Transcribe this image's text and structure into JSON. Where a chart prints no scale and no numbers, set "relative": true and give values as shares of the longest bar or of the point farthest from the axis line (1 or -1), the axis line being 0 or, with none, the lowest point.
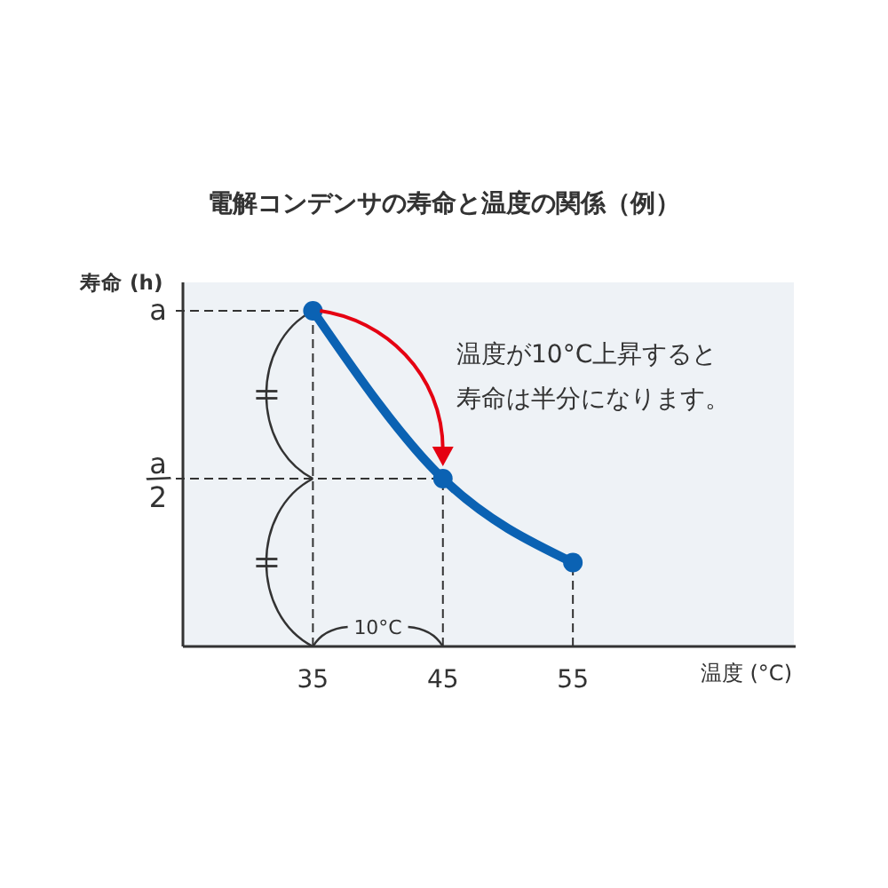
{
  "chart_data": {
    "type": "line",
    "title": "電解コンデンサの寿命と温度の関係（例）",
    "xlabel": "温度 (°C)",
    "ylabel": "寿命 (h)",
    "x": [
      35,
      45,
      55
    ],
    "series": [
      {
        "color": "#0b62b3",
        "values": [
          1,
          0.5,
          0.25
        ]
      }
    ],
    "relative": true,
    "xlim": [
      25,
      72
    ],
    "xticks": [
      35,
      45,
      55
    ],
    "marker": "circle",
    "ref_lines": [
      {
        "axis": "y",
        "value": 1,
        "color": "#333333",
        "line_style": "dashed"
      },
      {
        "axis": "y",
        "value": 0.5,
        "color": "#333333",
        "line_style": "dashed"
      },
      {
        "axis": "x",
        "value": 35,
        "color": "#333333",
        "line_style": "dashed"
      },
      {
        "axis": "x",
        "value": 45,
        "color": "#333333",
        "line_style": "dashed"
      },
      {
        "axis": "x",
        "value": 55,
        "color": "#333333",
        "line_style": "dashed"
      }
    ],
    "annotations": [
      "温度が10°C上昇すると寿命は半分になります。",
      "10°C",
      "a",
      "a/2"
    ]
  }
}
